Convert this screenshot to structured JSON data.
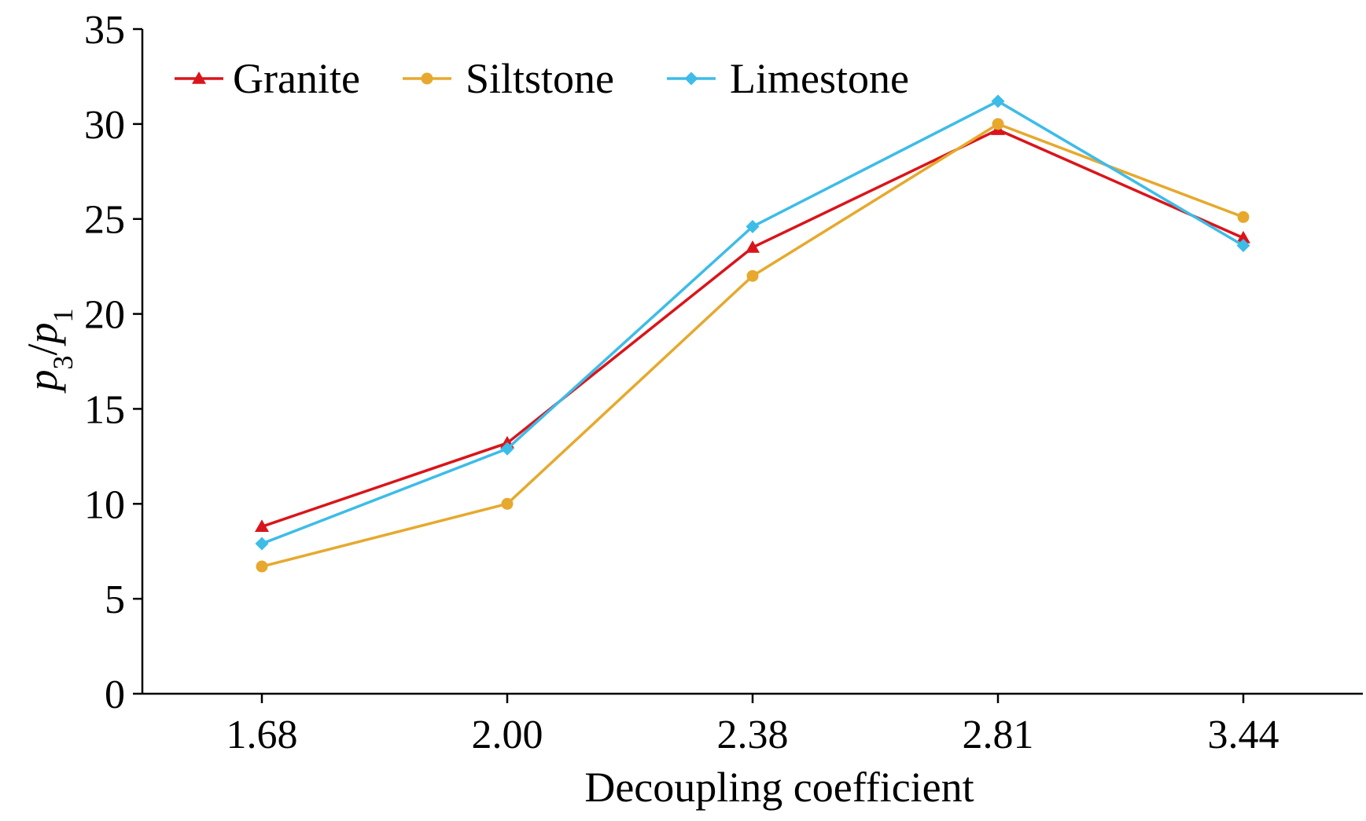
{
  "chart_data": {
    "type": "line",
    "title": "",
    "xlabel": "Decoupling coefficient",
    "ylabel": {
      "base1": "p",
      "sub1": "3",
      "slash": "/",
      "base2": "p",
      "sub2": "1"
    },
    "categories": [
      "1.68",
      "2.00",
      "2.38",
      "2.81",
      "3.44"
    ],
    "ylim": [
      0,
      35
    ],
    "yticks": [
      "0",
      "5",
      "10",
      "15",
      "20",
      "25",
      "30",
      "35"
    ],
    "grid": false,
    "legend_position": "top-left",
    "series": [
      {
        "name": "Granite",
        "color": "#d9151b",
        "marker": "triangle",
        "values": [
          8.8,
          13.2,
          23.5,
          29.7,
          24.0
        ]
      },
      {
        "name": "Siltstone",
        "color": "#e6a92e",
        "marker": "circle",
        "values": [
          6.7,
          10.0,
          22.0,
          30.0,
          25.1
        ]
      },
      {
        "name": "Limestone",
        "color": "#3dbce8",
        "marker": "diamond",
        "values": [
          7.9,
          12.9,
          24.6,
          31.2,
          23.6
        ]
      }
    ]
  }
}
